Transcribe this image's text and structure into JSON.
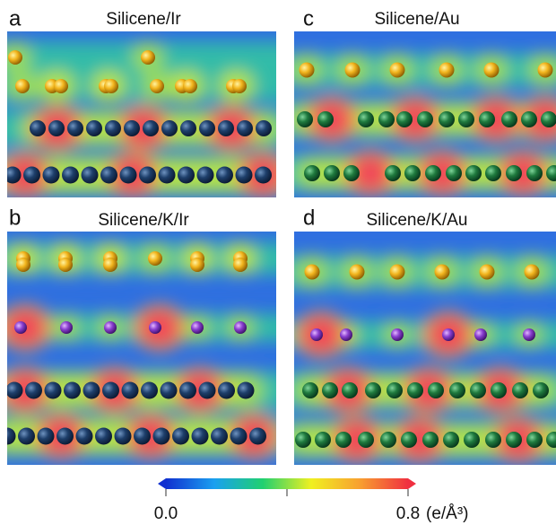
{
  "panels": [
    {
      "label": "a",
      "title": "Silicene/Ir"
    },
    {
      "label": "b",
      "title": "Silicene/K/Ir"
    },
    {
      "label": "c",
      "title": "Silicene/Au"
    },
    {
      "label": "d",
      "title": "Silicene/K/Au"
    }
  ],
  "colorbar": {
    "ticks": [
      {
        "value": 0,
        "label": "0.0"
      },
      0.8
    ],
    "unit": "(e/Å³)"
  }
}
